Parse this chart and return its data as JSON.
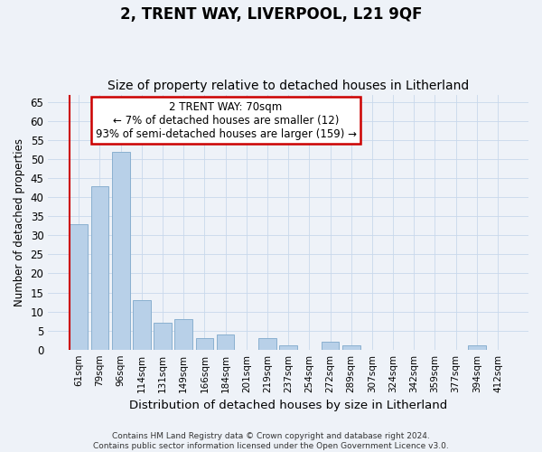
{
  "title": "2, TRENT WAY, LIVERPOOL, L21 9QF",
  "subtitle": "Size of property relative to detached houses in Litherland",
  "xlabel": "Distribution of detached houses by size in Litherland",
  "ylabel": "Number of detached properties",
  "categories": [
    "61sqm",
    "79sqm",
    "96sqm",
    "114sqm",
    "131sqm",
    "149sqm",
    "166sqm",
    "184sqm",
    "201sqm",
    "219sqm",
    "237sqm",
    "254sqm",
    "272sqm",
    "289sqm",
    "307sqm",
    "324sqm",
    "342sqm",
    "359sqm",
    "377sqm",
    "394sqm",
    "412sqm"
  ],
  "values": [
    33,
    43,
    52,
    13,
    7,
    8,
    3,
    4,
    0,
    3,
    1,
    0,
    2,
    1,
    0,
    0,
    0,
    0,
    0,
    1,
    0
  ],
  "bar_color": "#b8d0e8",
  "bar_edge_color": "#8ab0d0",
  "ylim": [
    0,
    67
  ],
  "yticks": [
    0,
    5,
    10,
    15,
    20,
    25,
    30,
    35,
    40,
    45,
    50,
    55,
    60,
    65
  ],
  "annotation_text": "2 TRENT WAY: 70sqm\n← 7% of detached houses are smaller (12)\n93% of semi-detached houses are larger (159) →",
  "annotation_box_facecolor": "#ffffff",
  "annotation_box_edgecolor": "#cc0000",
  "red_line_x": 0,
  "grid_color": "#c8d8ec",
  "footnote": "Contains HM Land Registry data © Crown copyright and database right 2024.\nContains public sector information licensed under the Open Government Licence v3.0.",
  "background_color": "#eef2f8",
  "title_fontsize": 12,
  "subtitle_fontsize": 10
}
